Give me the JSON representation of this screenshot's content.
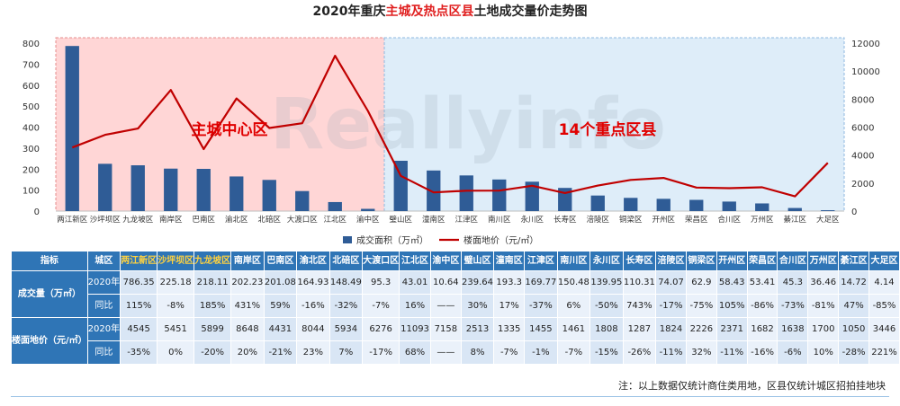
{
  "chart_data": {
    "type": "bar+line",
    "title_parts": [
      {
        "text": "2020年重庆",
        "highlight": false
      },
      {
        "text": "主城及热点区县",
        "highlight": true
      },
      {
        "text": "土地成交量价走势图",
        "highlight": false
      }
    ],
    "categories": [
      "两江新区",
      "沙坪坝区",
      "九龙坡区",
      "南岸区",
      "巴南区",
      "渝北区",
      "北碚区",
      "大渡口区",
      "江北区",
      "渝中区",
      "璧山区",
      "潼南区",
      "江津区",
      "南川区",
      "永川区",
      "长寿区",
      "涪陵区",
      "铜梁区",
      "开州区",
      "荣昌区",
      "合川区",
      "万州区",
      "綦江区",
      "大足区"
    ],
    "series": [
      {
        "name": "成交面积（万㎡）",
        "type": "bar",
        "axis": "left",
        "values": [
          786.35,
          225.18,
          218.11,
          202.23,
          201.08,
          164.93,
          148.49,
          95.3,
          43.01,
          10.64,
          239.64,
          193.3,
          169.77,
          150.48,
          139.95,
          110.31,
          74.07,
          62.9,
          58.43,
          53.41,
          45.3,
          36.46,
          14.72,
          4.14
        ]
      },
      {
        "name": "楼面地价（元/㎡）",
        "type": "line",
        "axis": "right",
        "values": [
          4545,
          5451,
          5899,
          8648,
          4431,
          8044,
          5934,
          6276,
          11093,
          7158,
          2513,
          1335,
          1455,
          1461,
          1808,
          1287,
          1824,
          2226,
          2371,
          1682,
          1638,
          1700,
          1050,
          3446
        ]
      }
    ],
    "y_left": {
      "min": 0,
      "max": 800,
      "ticks": [
        0,
        100,
        200,
        300,
        400,
        500,
        600,
        700,
        800
      ]
    },
    "y_right": {
      "min": 0,
      "max": 12000,
      "ticks": [
        0,
        2000,
        4000,
        6000,
        8000,
        10000,
        12000
      ]
    },
    "regions": [
      {
        "label": "主城中心区",
        "from": 0,
        "to": 9,
        "color": "#ffcccc"
      },
      {
        "label": "14个重点区县",
        "from": 10,
        "to": 23,
        "color": "#d6e8f7"
      }
    ],
    "bar_color": "#2f5c96",
    "line_color": "#c00000",
    "watermark": "Reallyinfo",
    "legend_position": "bottom-center",
    "grid": false
  },
  "table": {
    "col_header_1": "指标",
    "col_header_2": "城区",
    "sections": [
      {
        "label": "成交量（万㎡）",
        "rows": [
          {
            "name": "2020年",
            "values": [
              "786.35",
              "225.18",
              "218.11",
              "202.23",
              "201.08",
              "164.93",
              "148.49",
              "95.3",
              "43.01",
              "10.64",
              "239.64",
              "193.3",
              "169.77",
              "150.48",
              "139.95",
              "110.31",
              "74.07",
              "62.9",
              "58.43",
              "53.41",
              "45.3",
              "36.46",
              "14.72",
              "4.14"
            ]
          },
          {
            "name": "同比",
            "values": [
              "115%",
              "-8%",
              "185%",
              "431%",
              "59%",
              "-16%",
              "-32%",
              "-7%",
              "16%",
              "——",
              "30%",
              "17%",
              "-37%",
              "6%",
              "-50%",
              "743%",
              "-17%",
              "-75%",
              "105%",
              "-86%",
              "-73%",
              "-81%",
              "47%",
              "-85%"
            ]
          }
        ]
      },
      {
        "label": "楼面地价（元/㎡）",
        "rows": [
          {
            "name": "2020年",
            "values": [
              "4545",
              "5451",
              "5899",
              "8648",
              "4431",
              "8044",
              "5934",
              "6276",
              "11093",
              "7158",
              "2513",
              "1335",
              "1455",
              "1461",
              "1808",
              "1287",
              "1824",
              "2226",
              "2371",
              "1682",
              "1638",
              "1700",
              "1050",
              "3446"
            ]
          },
          {
            "name": "同比",
            "values": [
              "-35%",
              "0%",
              "-20%",
              "20%",
              "-21%",
              "23%",
              "7%",
              "-17%",
              "68%",
              "——",
              "8%",
              "-7%",
              "-1%",
              "-7%",
              "-15%",
              "-26%",
              "-11%",
              "32%",
              "-11%",
              "-16%",
              "-6%",
              "10%",
              "-28%",
              "221%"
            ]
          }
        ]
      }
    ]
  },
  "note": "注：以上数据仅统计商住类用地，区县仅统计城区招拍挂地块"
}
